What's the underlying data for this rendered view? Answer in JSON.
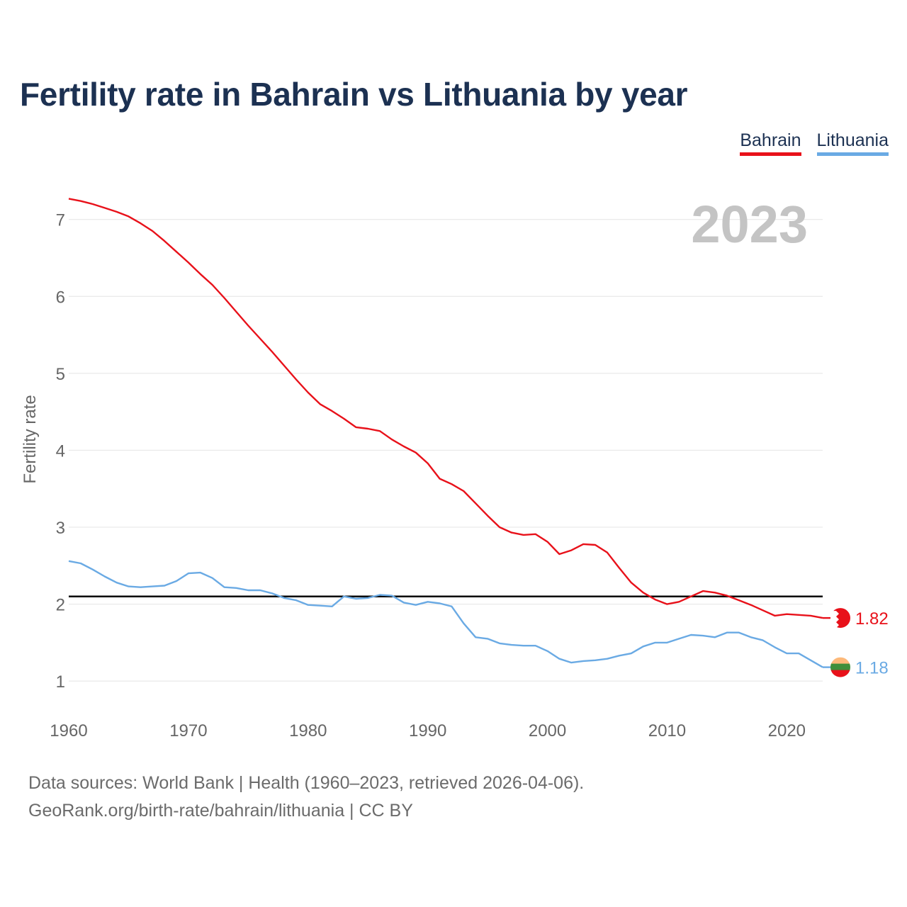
{
  "title": "Fertility rate in Bahrain vs Lithuania by year",
  "legend": [
    {
      "label": "Bahrain",
      "color": "#e8111a"
    },
    {
      "label": "Lithuania",
      "color": "#6aaae4"
    }
  ],
  "footer": {
    "line1": "Data sources: World Bank | Health (1960–2023, retrieved 2026-04-06).",
    "line2": "GeoRank.org/birth-rate/bahrain/lithuania | CC BY"
  },
  "chart_data": {
    "type": "line",
    "title": "Fertility rate in Bahrain vs Lithuania by year",
    "year_watermark": "2023",
    "xlabel": "",
    "ylabel": "Fertility rate",
    "xlim": [
      1960,
      2023
    ],
    "ylim": [
      0.55,
      7.55
    ],
    "xticks": [
      1960,
      1970,
      1980,
      1990,
      2000,
      2010,
      2020
    ],
    "yticks": [
      1,
      2,
      3,
      4,
      5,
      6,
      7
    ],
    "grid": true,
    "reference_line": {
      "y": 2.1,
      "color": "#000000"
    },
    "x": [
      1960,
      1961,
      1962,
      1963,
      1964,
      1965,
      1966,
      1967,
      1968,
      1969,
      1970,
      1971,
      1972,
      1973,
      1974,
      1975,
      1976,
      1977,
      1978,
      1979,
      1980,
      1981,
      1982,
      1983,
      1984,
      1985,
      1986,
      1987,
      1988,
      1989,
      1990,
      1991,
      1992,
      1993,
      1994,
      1995,
      1996,
      1997,
      1998,
      1999,
      2000,
      2001,
      2002,
      2003,
      2004,
      2005,
      2006,
      2007,
      2008,
      2009,
      2010,
      2011,
      2012,
      2013,
      2014,
      2015,
      2016,
      2017,
      2018,
      2019,
      2020,
      2021,
      2022,
      2023
    ],
    "series": [
      {
        "name": "Bahrain",
        "color": "#e8111a",
        "end_label": "1.82",
        "values": [
          7.27,
          7.24,
          7.2,
          7.15,
          7.1,
          7.04,
          6.95,
          6.85,
          6.72,
          6.58,
          6.44,
          6.29,
          6.15,
          5.98,
          5.8,
          5.62,
          5.45,
          5.28,
          5.1,
          4.92,
          4.75,
          4.6,
          4.51,
          4.41,
          4.3,
          4.28,
          4.25,
          4.14,
          4.05,
          3.97,
          3.83,
          3.63,
          3.56,
          3.47,
          3.31,
          3.15,
          3.0,
          2.93,
          2.9,
          2.91,
          2.81,
          2.65,
          2.7,
          2.78,
          2.77,
          2.67,
          2.47,
          2.28,
          2.15,
          2.06,
          2.0,
          2.03,
          2.1,
          2.17,
          2.15,
          2.11,
          2.05,
          1.99,
          1.92,
          1.85,
          1.87,
          1.86,
          1.85,
          1.82
        ]
      },
      {
        "name": "Lithuania",
        "color": "#6aaae4",
        "end_label": "1.18",
        "values": [
          2.56,
          2.53,
          2.45,
          2.36,
          2.28,
          2.23,
          2.22,
          2.23,
          2.24,
          2.3,
          2.4,
          2.41,
          2.34,
          2.22,
          2.21,
          2.18,
          2.18,
          2.14,
          2.08,
          2.05,
          1.99,
          1.98,
          1.97,
          2.1,
          2.07,
          2.08,
          2.12,
          2.11,
          2.02,
          1.99,
          2.03,
          2.01,
          1.97,
          1.75,
          1.57,
          1.55,
          1.49,
          1.47,
          1.46,
          1.46,
          1.39,
          1.29,
          1.24,
          1.26,
          1.27,
          1.29,
          1.33,
          1.36,
          1.45,
          1.5,
          1.5,
          1.55,
          1.6,
          1.59,
          1.57,
          1.63,
          1.63,
          1.57,
          1.53,
          1.44,
          1.36,
          1.36,
          1.27,
          1.18
        ]
      }
    ]
  }
}
